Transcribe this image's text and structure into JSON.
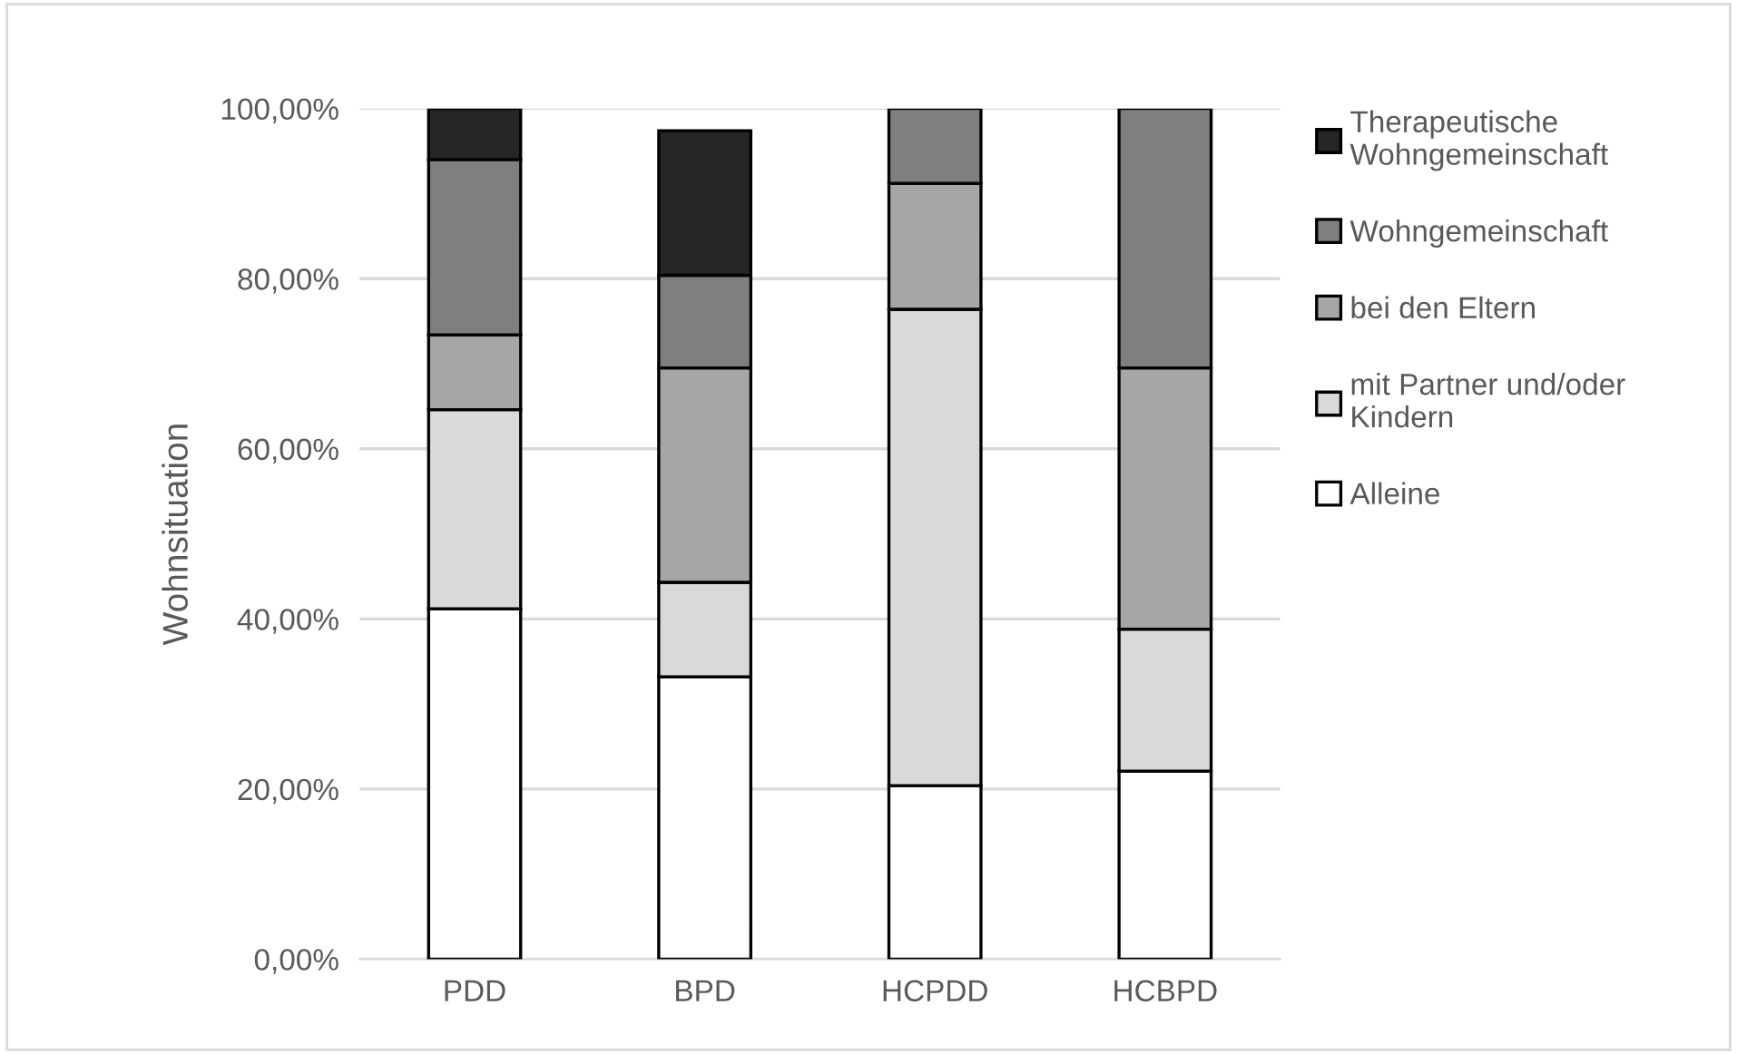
{
  "chart_data": {
    "type": "bar",
    "stacked": true,
    "ylabel": "Wohnsituation",
    "categories": [
      "PDD",
      "BPD",
      "HCPDD",
      "HCBPD"
    ],
    "series": [
      {
        "name": "Alleine",
        "color": "#ffffff",
        "values": [
          41.2,
          33.2,
          20.4,
          22.1
        ]
      },
      {
        "name": "mit Partner und/oder Kindern",
        "color": "#d9d9d9",
        "values": [
          23.4,
          11.1,
          56.0,
          16.7
        ]
      },
      {
        "name": "bei den Eltern",
        "color": "#a6a6a6",
        "values": [
          8.8,
          25.2,
          14.8,
          30.7
        ]
      },
      {
        "name": "Wohngemeinschaft",
        "color": "#7f7f7f",
        "values": [
          20.6,
          10.9,
          8.8,
          30.5
        ]
      },
      {
        "name": "Therapeutische Wohngemeinschaft",
        "color": "#262626",
        "values": [
          6.0,
          17.0,
          null,
          null
        ]
      }
    ],
    "ylim": [
      0,
      100
    ],
    "yticks": [
      {
        "value": 0,
        "label": "0,00%"
      },
      {
        "value": 20,
        "label": "20,00%"
      },
      {
        "value": 40,
        "label": "40,00%"
      },
      {
        "value": 60,
        "label": "60,00%"
      },
      {
        "value": 80,
        "label": "80,00%"
      },
      {
        "value": 100,
        "label": "100,00%"
      }
    ],
    "grid": "y",
    "legend": "right"
  }
}
